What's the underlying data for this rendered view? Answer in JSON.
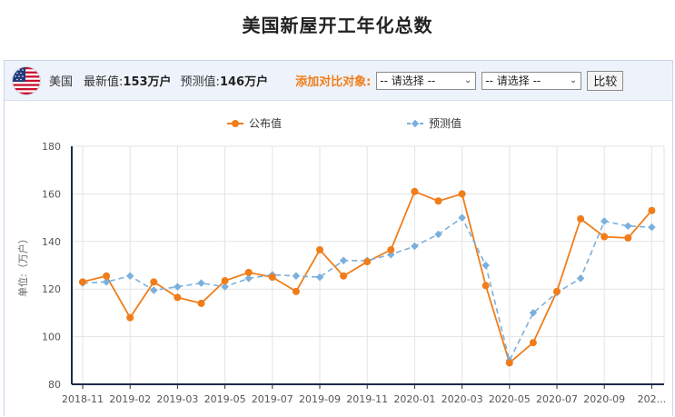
{
  "page": {
    "title": "美国新屋开工年化总数"
  },
  "toolbar": {
    "country": "美国",
    "latest_label": "最新值:",
    "latest_value": "153万户",
    "forecast_label": "预测值:",
    "forecast_value": "146万户",
    "compare_label": "添加对比对象:",
    "select1": "-- 请选择 --",
    "select2": "-- 请选择 --",
    "compare_button": "比较",
    "flag_icon": "us-flag-icon"
  },
  "colors": {
    "actual": "#f07d1a",
    "forecast": "#7cb0dc",
    "accent": "#f07d1a"
  },
  "chart_data": {
    "type": "line",
    "ylabel": "单位:（万户）",
    "ylim": [
      80,
      180
    ],
    "yticks": [
      80,
      100,
      120,
      140,
      160,
      180
    ],
    "grid": true,
    "legend_position": "top",
    "x": [
      "2018-11",
      "2018-12",
      "2019-01",
      "2019-02",
      "2019-03",
      "2019-04",
      "2019-05",
      "2019-06",
      "2019-07",
      "2019-08",
      "2019-09",
      "2019-10",
      "2019-11",
      "2019-12",
      "2020-01",
      "2020-02",
      "2020-03",
      "2020-04",
      "2020-05",
      "2020-06",
      "2020-07",
      "2020-08",
      "2020-09",
      "2020-10",
      "2020-11"
    ],
    "xtick_labels": [
      "2018-11",
      "2019-02",
      "2019-03",
      "2019-05",
      "2019-07",
      "2019-09",
      "2019-11",
      "2020-01",
      "2020-03",
      "2020-05",
      "2020-07",
      "2020-09",
      "202..."
    ],
    "series": [
      {
        "name": "公布值",
        "style": "solid",
        "color": "#f07d1a",
        "values": [
          123,
          125.5,
          108,
          123,
          116.5,
          114,
          123.5,
          127,
          125,
          119,
          136.5,
          125.5,
          131.5,
          136.5,
          161,
          157,
          160,
          121.5,
          89,
          97.5,
          119,
          149.5,
          142,
          141.5,
          153
        ]
      },
      {
        "name": "预测值",
        "style": "dashed",
        "color": "#7cb0dc",
        "values": [
          122.5,
          123,
          125.5,
          119.5,
          121,
          122.5,
          121,
          124.5,
          126,
          125.5,
          125,
          132,
          132,
          134.5,
          138,
          143,
          150,
          130,
          90,
          110,
          118.5,
          124.5,
          148.5,
          146.5,
          146
        ]
      }
    ]
  }
}
